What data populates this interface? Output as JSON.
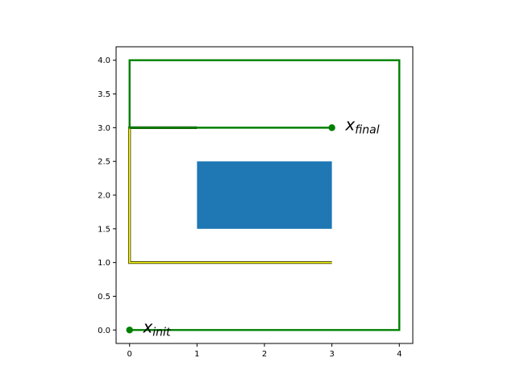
{
  "chart_data": {
    "type": "line",
    "title": "",
    "xlabel": "",
    "ylabel": "",
    "xlim": [
      -0.2,
      4.2
    ],
    "ylim": [
      -0.2,
      4.2
    ],
    "xticks": [
      0,
      1,
      2,
      3,
      4
    ],
    "yticks": [
      0.0,
      0.5,
      1.0,
      1.5,
      2.0,
      2.5,
      3.0,
      3.5,
      4.0
    ],
    "xtick_labels": [
      "0",
      "1",
      "2",
      "3",
      "4"
    ],
    "ytick_labels": [
      "0.0",
      "0.5",
      "1.0",
      "1.5",
      "2.0",
      "2.5",
      "3.0",
      "3.5",
      "4.0"
    ],
    "grid": false,
    "legend": "none",
    "obstacle": {
      "x": [
        1,
        3
      ],
      "y": [
        1.5,
        2.5
      ],
      "color": "#1f77b4"
    },
    "series": [
      {
        "style": "yellow-outlined",
        "color": "#ffff00",
        "edge_color": "#333300",
        "x": [
          1,
          0,
          0,
          3
        ],
        "y": [
          3,
          3,
          1,
          1
        ]
      },
      {
        "style": "green-path",
        "color": "#008000",
        "x": [
          0,
          4,
          4,
          0,
          0,
          3
        ],
        "y": [
          0,
          0,
          4,
          4,
          3,
          3
        ]
      }
    ],
    "points": [
      {
        "x": 0,
        "y": 0,
        "color": "#008000"
      },
      {
        "x": 3,
        "y": 3,
        "color": "#008000"
      }
    ],
    "annotations": [
      {
        "main": "x",
        "sub": "init",
        "x": 0.2,
        "y": 0.0
      },
      {
        "main": "x",
        "sub": "final",
        "x": 3.2,
        "y": 3.0
      }
    ]
  }
}
